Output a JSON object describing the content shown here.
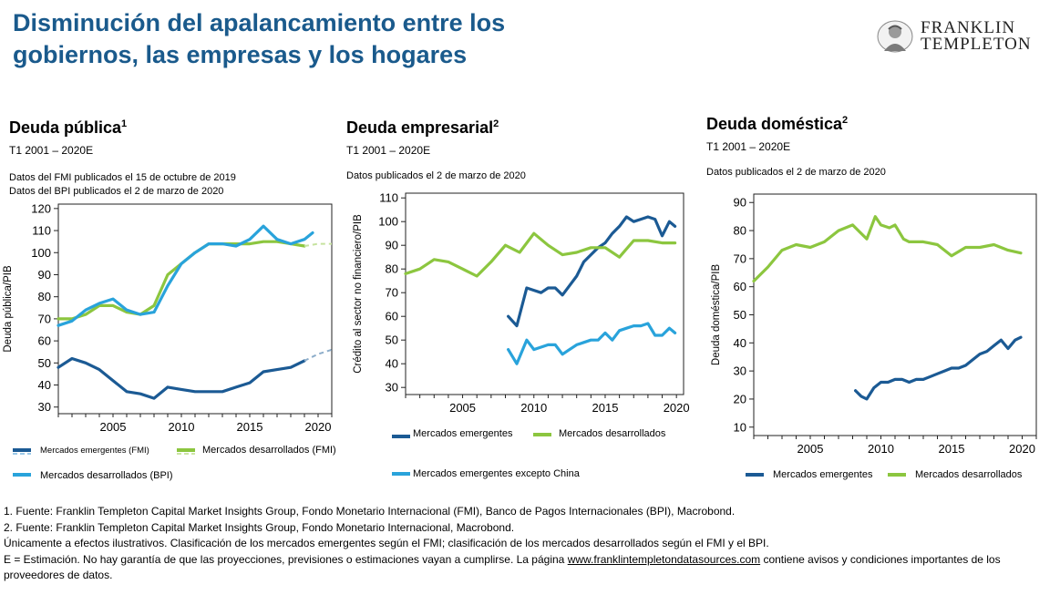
{
  "title_line1": "Disminución del apalancamiento entre los",
  "title_line2": "gobiernos, las empresas y los hogares",
  "logo": {
    "line1": "FRANKLIN",
    "line2": "TEMPLETON"
  },
  "colors": {
    "em": "#1b5a94",
    "dm": "#8cc63f",
    "dm_bpi": "#29a3db",
    "title": "#1a5a8c"
  },
  "panels": [
    {
      "title": "Deuda pública",
      "sup": "1",
      "subtitle": "T1 2001 – 2020E",
      "note1": "Datos del FMI publicados el 15 de octubre de 2019",
      "note2": "Datos del BPI publicados el 2 de marzo de 2020",
      "legend_em": "Mercados emergentes (FMI)",
      "legend_dm": "Mercados desarrollados (FMI)",
      "legend_bpi": "Mercados desarrollados (BPI)"
    },
    {
      "title": "Deuda empresarial",
      "sup": "2",
      "subtitle": "T1 2001 – 2020E",
      "note1": "Datos publicados el 2 de marzo de 2020",
      "legend_em": "Mercados emergentes",
      "legend_dm": "Mercados desarrollados",
      "legend_exchina": "Mercados emergentes excepto China"
    },
    {
      "title": "Deuda doméstica",
      "sup": "2",
      "subtitle": "T1 2001 – 2020E",
      "note1": "Datos publicados el 2 de marzo de 2020",
      "legend_em": "Mercados emergentes",
      "legend_dm": "Mercados desarrollados"
    }
  ],
  "footnotes": {
    "f1": "1. Fuente: Franklin Templeton Capital Market Insights Group, Fondo Monetario Internacional (FMI), Banco de Pagos Internacionales (BPI), Macrobond.",
    "f2": "2. Fuente: Franklin Templeton Capital Market Insights Group, Fondo Monetario Internacional, Macrobond.",
    "f3": "Únicamente a efectos ilustrativos. Clasificación de los mercados emergentes según el FMI; clasificación de los mercados desarrollados según el FMI y el BPI.",
    "f4a": "E = Estimación. No hay garantía de que las proyecciones, previsiones o estimaciones vayan a cumplirse. La página ",
    "link": "www.franklintempletondatasources.com",
    "f4b": " contiene avisos y condiciones importantes de los proveedores de datos."
  },
  "chart_data": [
    {
      "type": "line",
      "title": "Deuda pública",
      "ylabel": "Deuda pública/PIB",
      "xlim": [
        2001,
        2021
      ],
      "ylim": [
        27,
        122
      ],
      "xticks": [
        2005,
        2010,
        2015,
        2020
      ],
      "yticks": [
        30,
        40,
        50,
        60,
        70,
        80,
        90,
        100,
        110,
        120
      ],
      "series": [
        {
          "name": "Mercados emergentes (FMI)",
          "color": "#1b5a94",
          "x": [
            2001,
            2002,
            2003,
            2004,
            2005,
            2006,
            2007,
            2008,
            2009,
            2010,
            2011,
            2012,
            2013,
            2014,
            2015,
            2016,
            2017,
            2018,
            2019
          ],
          "y": [
            48,
            52,
            50,
            47,
            42,
            37,
            36,
            34,
            39,
            38,
            37,
            37,
            37,
            39,
            41,
            46,
            47,
            48,
            51
          ],
          "est_x": [
            2019,
            2020,
            2021
          ],
          "est_y": [
            51,
            54,
            56
          ]
        },
        {
          "name": "Mercados desarrollados (FMI)",
          "color": "#8cc63f",
          "x": [
            2001,
            2002,
            2003,
            2004,
            2005,
            2006,
            2007,
            2008,
            2009,
            2010,
            2011,
            2012,
            2013,
            2014,
            2015,
            2016,
            2017,
            2018,
            2019
          ],
          "y": [
            70,
            70,
            72,
            76,
            76,
            73,
            72,
            76,
            90,
            95,
            100,
            104,
            104,
            104,
            104,
            105,
            105,
            104,
            103
          ],
          "est_x": [
            2019,
            2020,
            2021
          ],
          "est_y": [
            103,
            104,
            104
          ]
        },
        {
          "name": "Mercados desarrollados (BPI)",
          "color": "#29a3db",
          "x": [
            2001,
            2002,
            2003,
            2004,
            2005,
            2006,
            2007,
            2008,
            2009,
            2010,
            2011,
            2012,
            2013,
            2014,
            2015,
            2016,
            2017,
            2018,
            2019,
            2019.6
          ],
          "y": [
            67,
            69,
            74,
            77,
            79,
            74,
            72,
            73,
            85,
            95,
            100,
            104,
            104,
            103,
            106,
            112,
            106,
            104,
            106,
            109
          ]
        }
      ]
    },
    {
      "type": "line",
      "title": "Deuda empresarial",
      "ylabel": "Crédito al sector no financiero/PIB",
      "xlim": [
        2001,
        2020.5
      ],
      "ylim": [
        27,
        112
      ],
      "xticks": [
        2005,
        2010,
        2015,
        2020
      ],
      "yticks": [
        30,
        40,
        50,
        60,
        70,
        80,
        90,
        100,
        110
      ],
      "series": [
        {
          "name": "Mercados emergentes",
          "color": "#1b5a94",
          "x": [
            2008.2,
            2008.8,
            2009.5,
            2010,
            2010.5,
            2011,
            2011.5,
            2012,
            2012.5,
            2013,
            2013.5,
            2014,
            2014.5,
            2015,
            2015.5,
            2016,
            2016.5,
            2017,
            2017.5,
            2018,
            2018.5,
            2019,
            2019.5,
            2019.9
          ],
          "y": [
            60,
            56,
            72,
            71,
            70,
            72,
            72,
            69,
            73,
            77,
            83,
            86,
            89,
            91,
            95,
            98,
            102,
            100,
            101,
            102,
            101,
            94,
            100,
            98
          ]
        },
        {
          "name": "Mercados desarrollados",
          "color": "#8cc63f",
          "x": [
            2001,
            2002,
            2003,
            2004,
            2005,
            2006,
            2007,
            2008,
            2009,
            2010,
            2011,
            2012,
            2013,
            2014,
            2015,
            2016,
            2017,
            2018,
            2019,
            2019.9
          ],
          "y": [
            78,
            80,
            84,
            83,
            80,
            77,
            83,
            90,
            87,
            95,
            90,
            86,
            87,
            89,
            89,
            85,
            92,
            92,
            91,
            91
          ]
        },
        {
          "name": "Mercados emergentes excepto China",
          "color": "#29a3db",
          "x": [
            2008.2,
            2008.8,
            2009.5,
            2010,
            2010.5,
            2011,
            2011.5,
            2012,
            2012.5,
            2013,
            2013.5,
            2014,
            2014.5,
            2015,
            2015.5,
            2016,
            2016.5,
            2017,
            2017.5,
            2018,
            2018.5,
            2019,
            2019.5,
            2019.9
          ],
          "y": [
            46,
            40,
            50,
            46,
            47,
            48,
            48,
            44,
            46,
            48,
            49,
            50,
            50,
            53,
            50,
            54,
            55,
            56,
            56,
            57,
            52,
            52,
            55,
            53
          ]
        }
      ]
    },
    {
      "type": "line",
      "title": "Deuda doméstica",
      "ylabel": "Deuda doméstica/PIB",
      "xlim": [
        2001,
        2021
      ],
      "ylim": [
        7,
        93
      ],
      "xticks": [
        2005,
        2010,
        2015,
        2020
      ],
      "yticks": [
        10,
        20,
        30,
        40,
        50,
        60,
        70,
        80,
        90
      ],
      "series": [
        {
          "name": "Mercados emergentes",
          "color": "#1b5a94",
          "x": [
            2008.2,
            2008.6,
            2009,
            2009.5,
            2010,
            2010.5,
            2011,
            2011.5,
            2012,
            2012.5,
            2013,
            2013.5,
            2014,
            2014.5,
            2015,
            2015.5,
            2016,
            2016.5,
            2017,
            2017.5,
            2018,
            2018.5,
            2019,
            2019.5,
            2019.9
          ],
          "y": [
            23,
            21,
            20,
            24,
            26,
            26,
            27,
            27,
            26,
            27,
            27,
            28,
            29,
            30,
            31,
            31,
            32,
            34,
            36,
            37,
            39,
            41,
            38,
            41,
            42
          ]
        },
        {
          "name": "Mercados desarrollados",
          "color": "#8cc63f",
          "x": [
            2001,
            2002,
            2003,
            2004,
            2005,
            2006,
            2007,
            2008,
            2009,
            2009.6,
            2010,
            2010.6,
            2011,
            2011.6,
            2012,
            2013,
            2014,
            2015,
            2016,
            2017,
            2018,
            2019,
            2019.9
          ],
          "y": [
            62,
            67,
            73,
            75,
            74,
            76,
            80,
            82,
            77,
            85,
            82,
            81,
            82,
            77,
            76,
            76,
            75,
            71,
            74,
            74,
            75,
            73,
            72
          ]
        }
      ]
    }
  ]
}
